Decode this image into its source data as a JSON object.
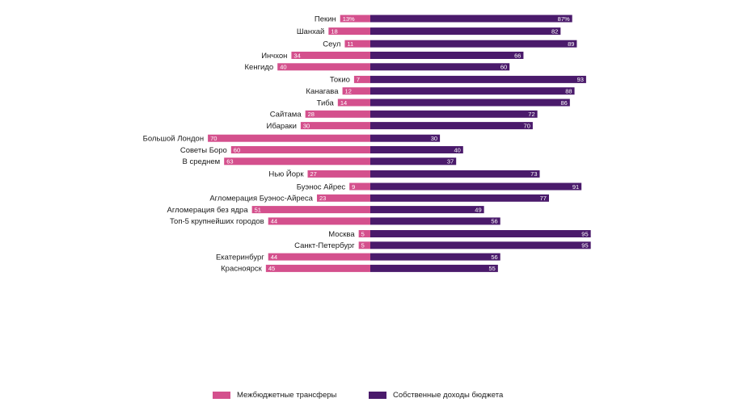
{
  "chart_data": {
    "type": "bar",
    "orientation": "horizontal-diverging",
    "categories": [
      "Пекин",
      "Шанхай",
      "Сеул",
      "Инчхон",
      "Кенгидо",
      "Токио",
      "Канагава",
      "Тиба",
      "Сайтама",
      "Ибараки",
      "Большой Лондон",
      "Советы Боро",
      "В среднем",
      "Нью Йорк",
      "Буэнос Айрес",
      "Агломерация Буэнос-Айреса",
      "Агломерация без ядра",
      "Топ-5 крупнейших городов",
      "Москва",
      "Санкт-Петербург",
      "Екатеринбург",
      "Красноярск"
    ],
    "groups": [
      [
        0
      ],
      [
        1
      ],
      [
        2,
        3,
        4
      ],
      [
        5,
        6,
        7,
        8,
        9
      ],
      [
        10,
        11,
        12
      ],
      [
        13
      ],
      [
        14,
        15,
        16,
        17
      ],
      [
        18,
        19,
        20,
        21
      ]
    ],
    "series": [
      {
        "name": "Межбюджетные трансферы",
        "color": "#d4508d",
        "values": [
          13,
          18,
          11,
          34,
          40,
          7,
          12,
          14,
          28,
          30,
          70,
          60,
          63,
          27,
          9,
          23,
          51,
          44,
          5,
          5,
          44,
          45
        ],
        "labels": [
          "13%",
          "18",
          "11",
          "34",
          "40",
          "7",
          "12",
          "14",
          "28",
          "30",
          "70",
          "60",
          "63",
          "27",
          "9",
          "23",
          "51",
          "44",
          "5",
          "5",
          "44",
          "45"
        ]
      },
      {
        "name": "Собственные доходы бюджета",
        "color": "#4a1a6b",
        "values": [
          87,
          82,
          89,
          66,
          60,
          93,
          88,
          86,
          72,
          70,
          30,
          40,
          37,
          73,
          91,
          77,
          49,
          56,
          95,
          95,
          56,
          55
        ],
        "labels": [
          "87%",
          "82",
          "89",
          "66",
          "60",
          "93",
          "88",
          "86",
          "72",
          "70",
          "30",
          "40",
          "37",
          "73",
          "91",
          "77",
          "49",
          "56",
          "95",
          "95",
          "56",
          "55"
        ]
      }
    ],
    "legend_position": "bottom",
    "grid": false
  }
}
